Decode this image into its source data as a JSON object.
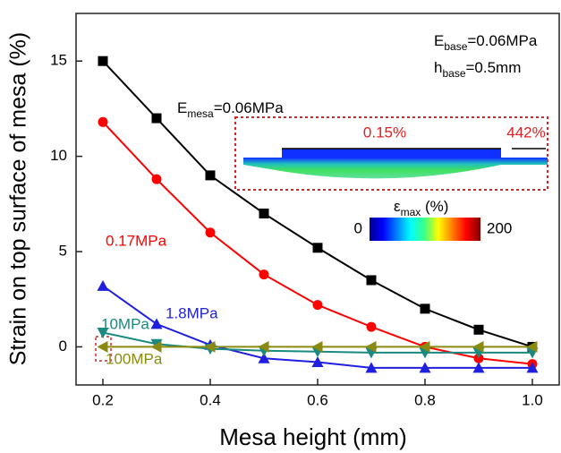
{
  "chart_data": {
    "type": "line",
    "xlabel": "Mesa height (mm)",
    "ylabel": "Strain on top surface of mesa (%)",
    "x": [
      0.2,
      0.3,
      0.4,
      0.5,
      0.6,
      0.7,
      0.8,
      0.9,
      1.0
    ],
    "xlim": [
      0.15,
      1.05
    ],
    "xticks": [
      0.2,
      0.4,
      0.6,
      0.8,
      {
        "value": 1.0,
        "label": "1.0"
      }
    ],
    "ylim": [
      -2,
      17.5
    ],
    "yticks": [
      0,
      5,
      10,
      15
    ],
    "grid": false,
    "series": [
      {
        "name_parts": {
          "base": "E",
          "sub": "mesa",
          "tail": "=0.06MPa"
        },
        "color": "#000000",
        "marker": "square",
        "values": [
          15,
          12,
          9,
          7,
          5.2,
          3.5,
          2,
          0.9,
          0
        ]
      },
      {
        "name": "0.17MPa",
        "color": "#ff0000",
        "marker": "circle",
        "values": [
          11.8,
          8.8,
          6,
          3.8,
          2.2,
          1.05,
          0,
          -0.6,
          -0.9
        ]
      },
      {
        "name": "1.8MPa",
        "color": "#1f1fe0",
        "marker": "triangle-up",
        "values": [
          3.2,
          1.2,
          0.1,
          -0.6,
          -0.8,
          -1.1,
          -1.1,
          -1.1,
          -1.1
        ]
      },
      {
        "name": "10MPa",
        "color": "#1a8a80",
        "marker": "triangle-down",
        "values": [
          0.75,
          0.15,
          -0.1,
          -0.2,
          -0.25,
          -0.3,
          -0.3,
          -0.3,
          -0.3
        ]
      },
      {
        "name": "100MPa",
        "color": "#8a8a10",
        "marker": "triangle-left",
        "values": [
          0,
          0,
          0,
          0,
          0,
          0,
          0,
          0,
          0
        ]
      }
    ],
    "annotations": {
      "base_modulus": {
        "base": "E",
        "sub": "base",
        "tail": "=0.06MPa"
      },
      "base_height": {
        "base": "h",
        "sub": "base",
        "tail": "=0.5mm"
      },
      "inset_left": "0.15%",
      "inset_right": "442%",
      "colorbar": {
        "base": "ε",
        "sub": "max",
        "tail": " (%)",
        "min": 0,
        "max": 200
      }
    }
  }
}
